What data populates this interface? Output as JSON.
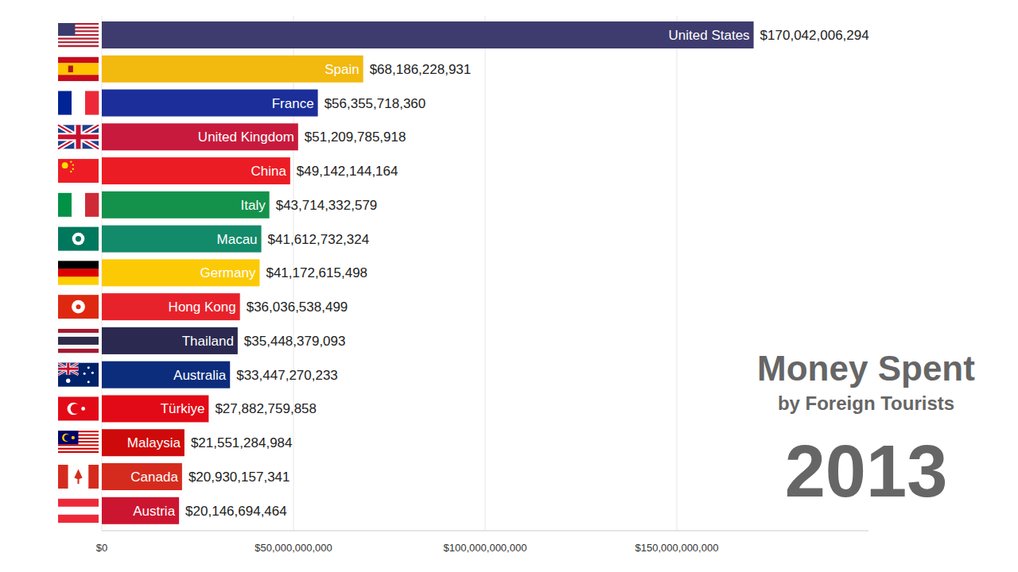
{
  "chart_data": {
    "type": "bar",
    "orientation": "horizontal",
    "title": "Money Spent",
    "subtitle": "by Foreign Tourists",
    "annotations": [
      "2013"
    ],
    "categories": [
      "United States",
      "Spain",
      "France",
      "United Kingdom",
      "China",
      "Italy",
      "Macau",
      "Germany",
      "Hong Kong",
      "Thailand",
      "Australia",
      "Türkiye",
      "Malaysia",
      "Canada",
      "Austria"
    ],
    "values": [
      170042006294,
      68186228931,
      56355718360,
      51209785918,
      49142144164,
      43714332579,
      41612732324,
      41172615498,
      36036538499,
      35448379093,
      33447270233,
      27882759858,
      21551284984,
      20930157341,
      20146694464
    ],
    "value_labels": [
      "$170,042,006,294",
      "$68,186,228,931",
      "$56,355,718,360",
      "$51,209,785,918",
      "$49,142,144,164",
      "$43,714,332,579",
      "$41,612,732,324",
      "$41,172,615,498",
      "$36,036,538,499",
      "$35,448,379,093",
      "$33,447,270,233",
      "$27,882,759,858",
      "$21,551,284,984",
      "$20,930,157,341",
      "$20,146,694,464"
    ],
    "colors": [
      "#3e3b6e",
      "#f2b90f",
      "#1b2e9a",
      "#c81a3c",
      "#ec1c24",
      "#14924b",
      "#138a6a",
      "#fcca05",
      "#e8222b",
      "#2b2950",
      "#0c2c7c",
      "#e30a17",
      "#cf0a0a",
      "#d52b1e",
      "#cc1530"
    ],
    "data_labels": true,
    "grid": true,
    "xlim": [
      0,
      200000000000
    ],
    "xticks": [
      {
        "value": 0,
        "label": "$0"
      },
      {
        "value": 50000000000,
        "label": "$50,000,000,000"
      },
      {
        "value": 100000000000,
        "label": "$100,000,000,000"
      },
      {
        "value": 150000000000,
        "label": "$150,000,000,000"
      }
    ]
  }
}
